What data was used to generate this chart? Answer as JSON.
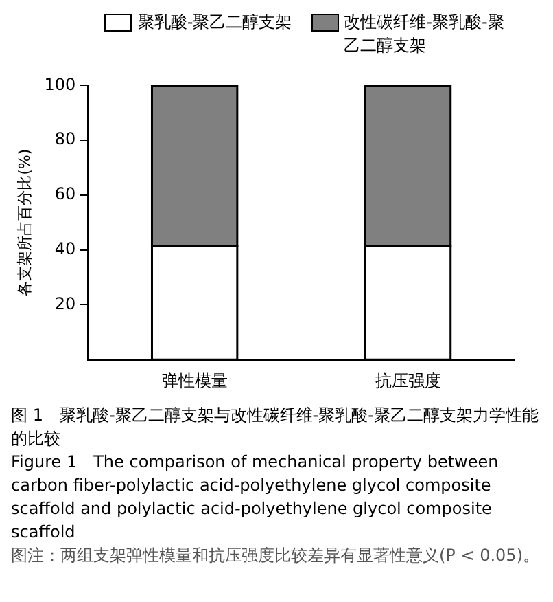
{
  "chart_data": {
    "type": "bar",
    "stacked": true,
    "categories": [
      "弹性模量",
      "抗压强度"
    ],
    "series": [
      {
        "name": "聚乳酸-聚乙二醇支架",
        "color": "#ffffff",
        "values": [
          41.5,
          41.5
        ]
      },
      {
        "name": "改性碳纤维-聚乳酸-聚乙二醇支架",
        "color": "#808080",
        "values": [
          58.5,
          58.5
        ]
      }
    ],
    "ylabel": "各支架所占百分比(%)",
    "ylim": [
      0,
      100
    ],
    "yticks": [
      20,
      40,
      60,
      80,
      100
    ],
    "grid": false,
    "legend": "top",
    "annotations": [
      "图 1　聚乳酸-聚乙二醇支架与改性碳纤维-聚乳酸-聚乙二醇支架力学性能的比较",
      "Figure 1　The comparison of mechanical property between carbon fiber-polylactic acid-polyethylene glycol composite scaffold and polylactic acid-polyethylene glycol composite scaffold",
      "图注：两组支架弹性模量和抗压强度比较差异有显著性意义(P < 0.05)。"
    ]
  }
}
